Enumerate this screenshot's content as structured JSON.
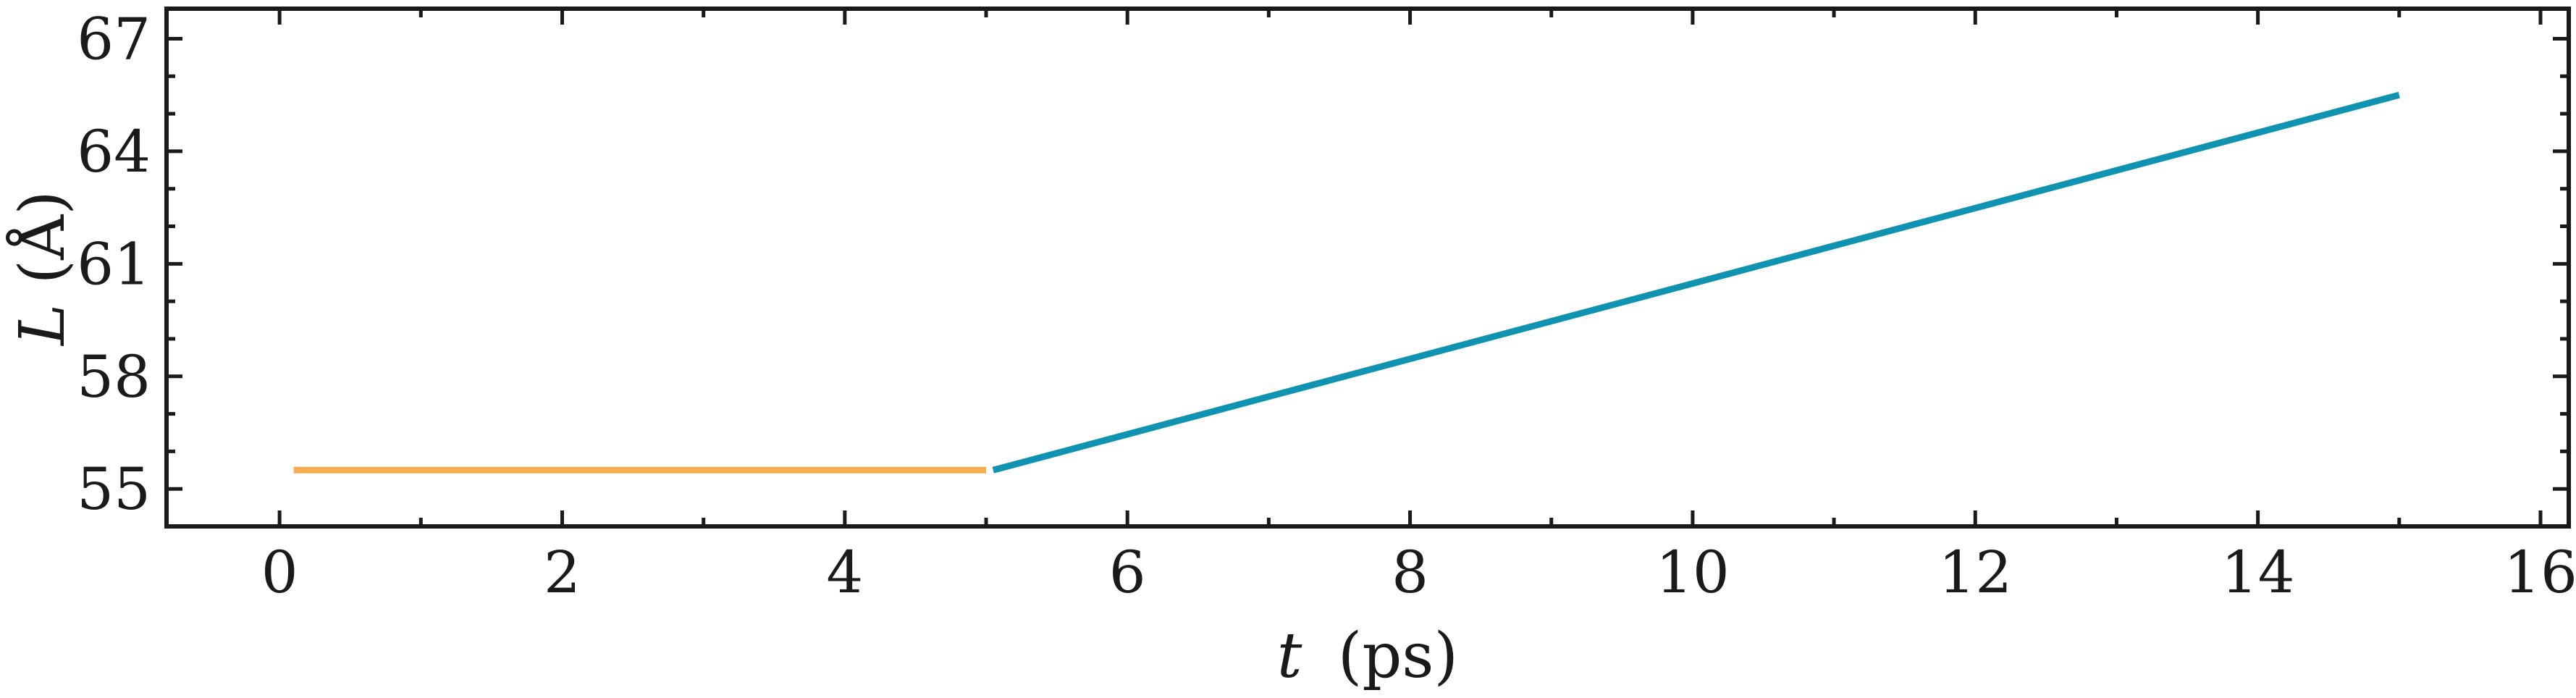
{
  "chart_data": {
    "type": "line",
    "xlabel": {
      "var": "t",
      "unit": "(ps)"
    },
    "ylabel": {
      "var": "L",
      "unit": "(Å)"
    },
    "xlim": [
      -0.8,
      16.2
    ],
    "ylim": [
      54.0,
      67.8
    ],
    "xticks": [
      0,
      2,
      4,
      6,
      8,
      10,
      12,
      14,
      16
    ],
    "xtick_labels": [
      "0",
      "2",
      "4",
      "6",
      "8",
      "10",
      "12",
      "14",
      "16"
    ],
    "xminor_step": 1,
    "yticks": [
      55,
      58,
      61,
      64,
      67
    ],
    "ytick_labels": [
      "55",
      "58",
      "61",
      "64",
      "67"
    ],
    "yminor_step": 1,
    "grid": false,
    "series": [
      {
        "color": "#f5ae4f",
        "x": [
          0.1,
          5.0
        ],
        "y": [
          55.5,
          55.5
        ]
      },
      {
        "color": "#0f93b0",
        "x": [
          5.05,
          15.0
        ],
        "y": [
          55.5,
          65.5
        ]
      }
    ]
  }
}
